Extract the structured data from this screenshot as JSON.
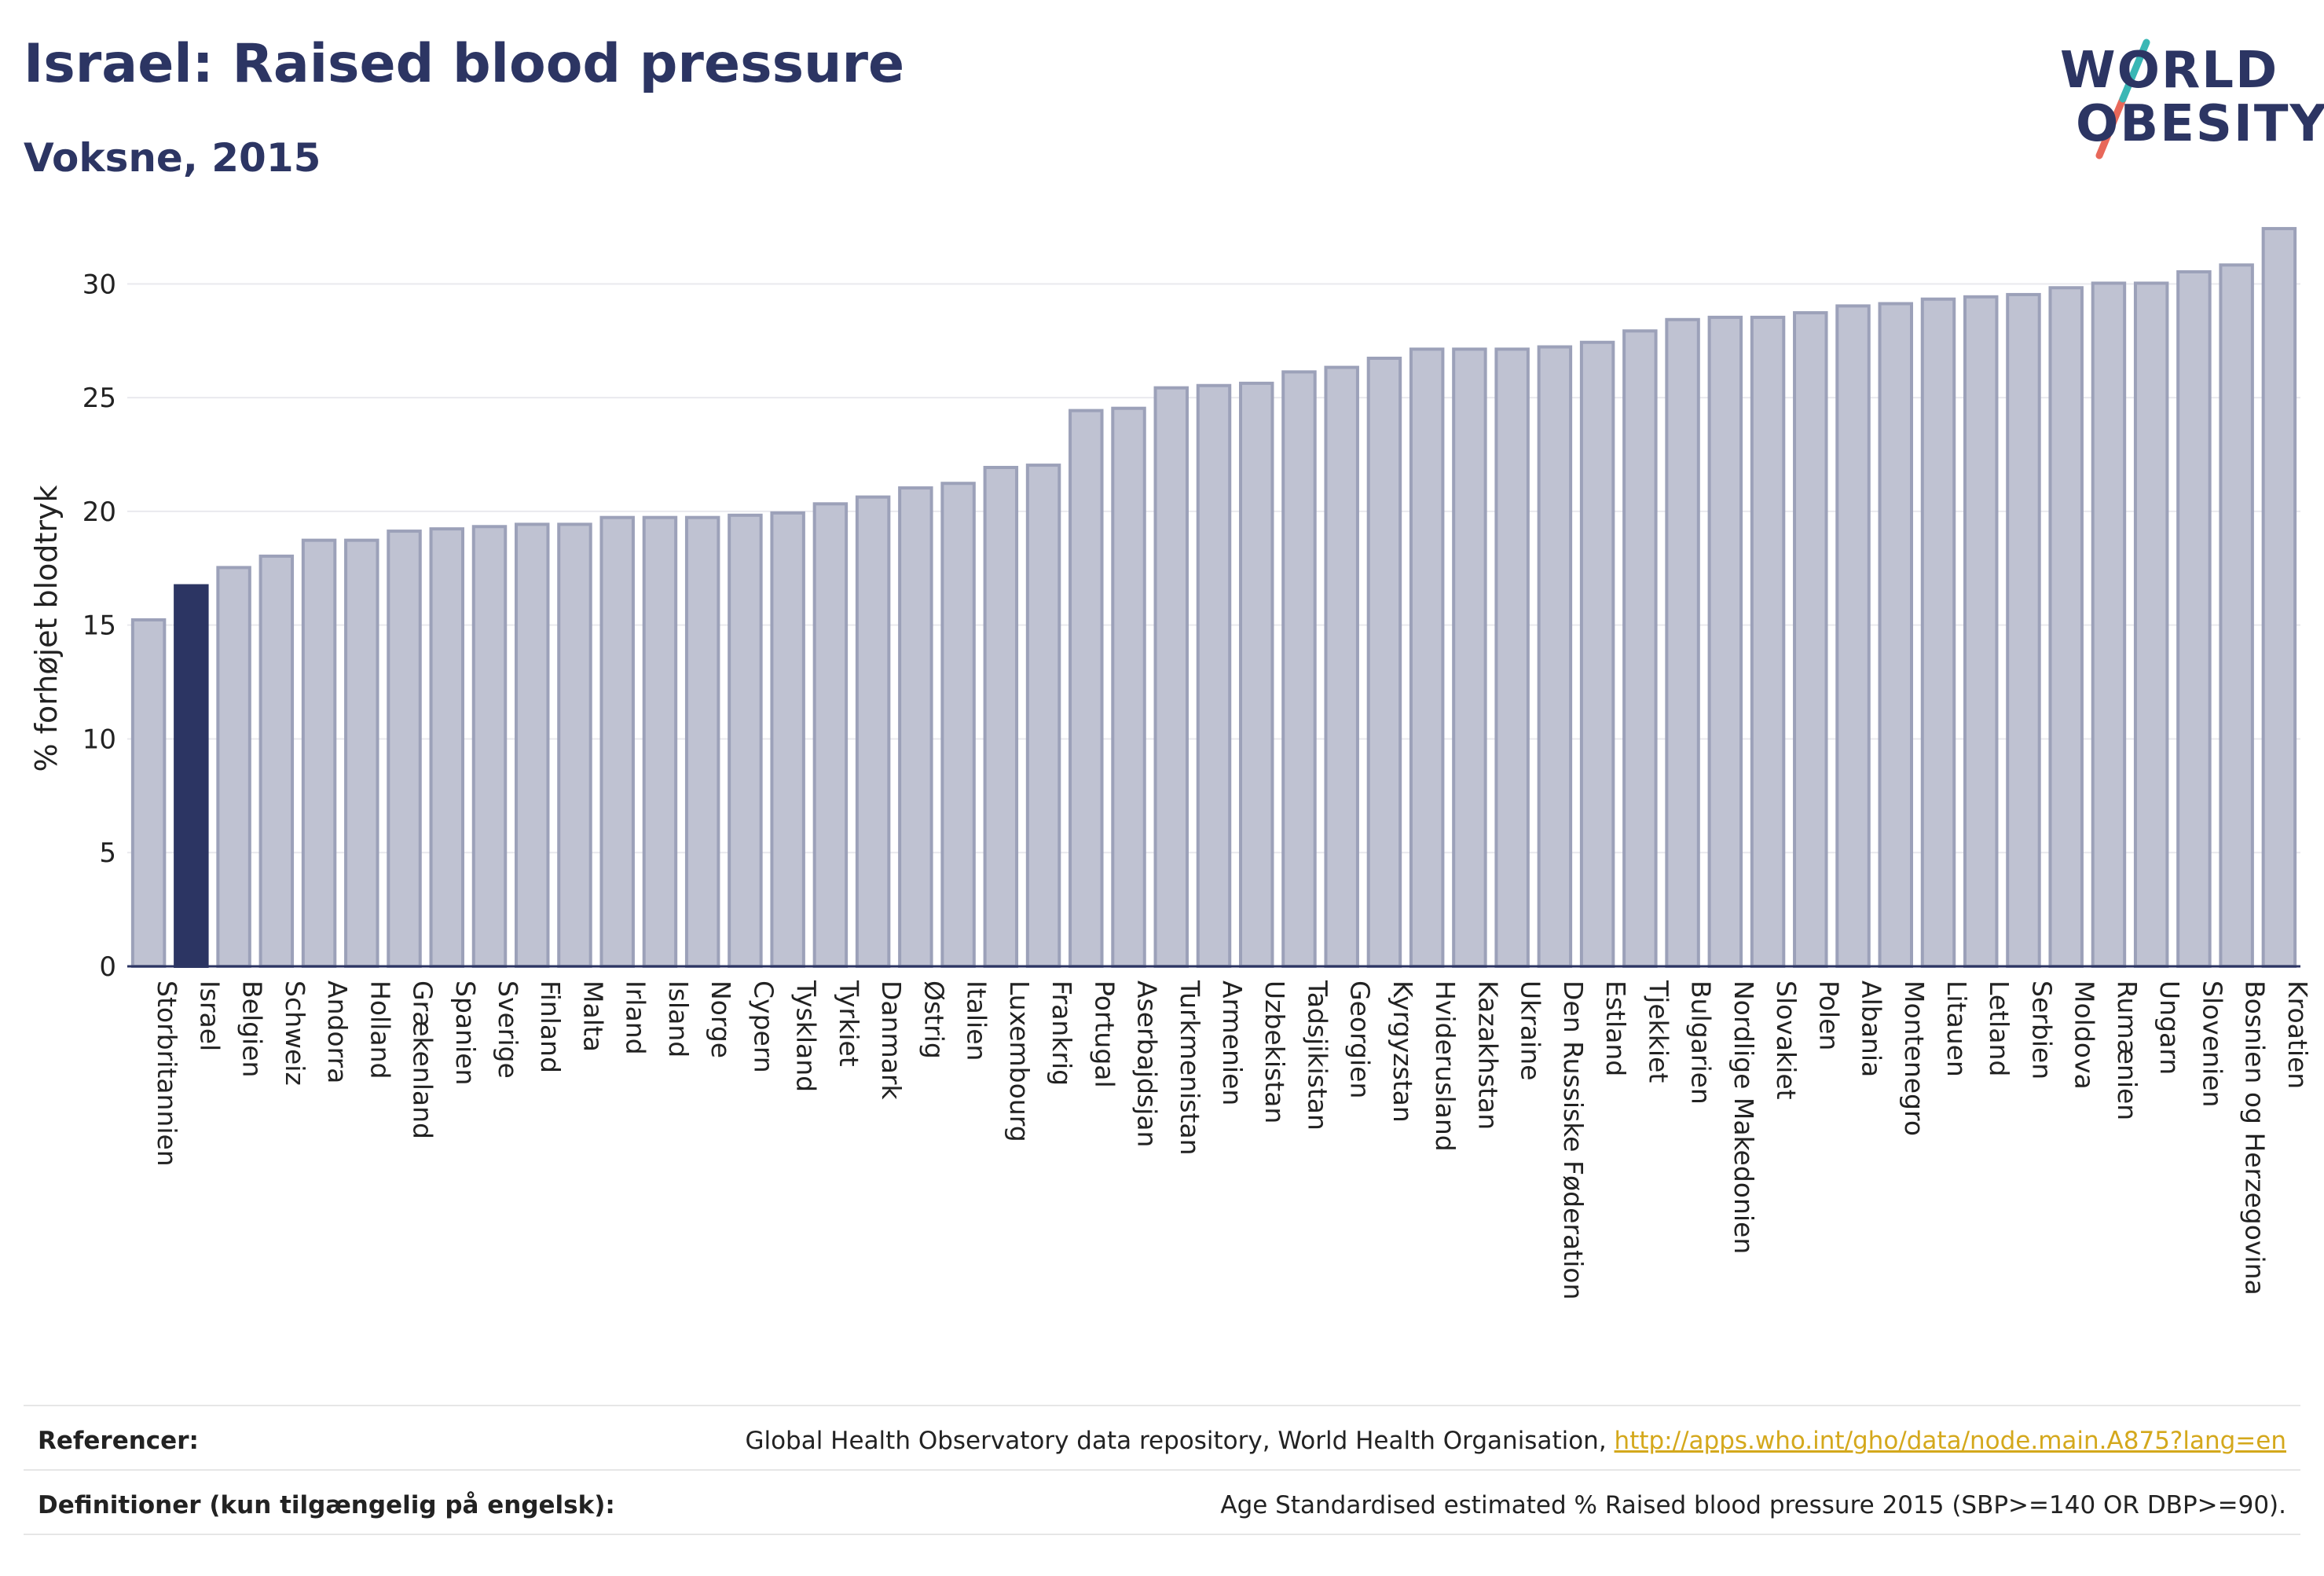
{
  "header": {
    "title": "Israel: Raised blood pressure",
    "subtitle": "Voksne, 2015"
  },
  "logo": {
    "line1": "WORLD",
    "line2": "OBESITY",
    "colors": {
      "text": "#2c3563",
      "slash_top": "#3ab7b5",
      "slash_bottom": "#e8685a"
    }
  },
  "colors": {
    "bar_default": "#bfc2d2",
    "bar_border": "#9ca1b9",
    "bar_highlight": "#2c3563",
    "axis_text": "#222222",
    "grid": "#e9e9ee"
  },
  "chart_data": {
    "type": "bar",
    "ylabel": "% forhøjet blodtryk",
    "ylim": [
      0,
      33.5
    ],
    "yticks": [
      0,
      5,
      10,
      15,
      20,
      25,
      30
    ],
    "grid": true,
    "highlight": "Israel",
    "categories": [
      "Storbritannien",
      "Israel",
      "Belgien",
      "Schweiz",
      "Andorra",
      "Holland",
      "Grækenland",
      "Spanien",
      "Sverige",
      "Finland",
      "Malta",
      "Irland",
      "Island",
      "Norge",
      "Cypern",
      "Tyskland",
      "Tyrkiet",
      "Danmark",
      "Østrig",
      "Italien",
      "Luxembourg",
      "Frankrig",
      "Portugal",
      "Aserbajdsjan",
      "Turkmenistan",
      "Armenien",
      "Uzbekistan",
      "Tadsjikistan",
      "Georgien",
      "Kyrgyzstan",
      "Hviderusland",
      "Kazakhstan",
      "Ukraine",
      "Den Russiske Føderation",
      "Estland",
      "Tjekkiet",
      "Bulgarien",
      "Nordlige Makedonien",
      "Slovakiet",
      "Polen",
      "Albania",
      "Montenegro",
      "Litauen",
      "Letland",
      "Serbien",
      "Moldova",
      "Rumænien",
      "Ungarn",
      "Slovenien",
      "Bosnien og Herzegovina",
      "Kroatien"
    ],
    "values": [
      15.3,
      16.8,
      17.6,
      18.1,
      18.8,
      18.8,
      19.2,
      19.3,
      19.4,
      19.5,
      19.5,
      19.8,
      19.8,
      19.8,
      19.9,
      20.0,
      20.4,
      20.7,
      21.1,
      21.3,
      22.0,
      22.1,
      24.5,
      24.6,
      25.5,
      25.6,
      25.7,
      26.2,
      26.4,
      26.8,
      27.2,
      27.2,
      27.2,
      27.3,
      27.5,
      28.0,
      28.5,
      28.6,
      28.6,
      28.8,
      29.1,
      29.2,
      29.4,
      29.5,
      29.6,
      29.9,
      30.1,
      30.1,
      30.6,
      30.9,
      32.5
    ]
  },
  "footer": {
    "references_label": "Referencer:",
    "references_text": "Global Health Observatory data repository, World Health Organisation,",
    "references_link": "http://apps.who.int/gho/data/node.main.A875?lang=en",
    "definitions_label": "Definitioner (kun tilgængelig på engelsk):",
    "definitions_text": "Age Standardised estimated % Raised blood pressure 2015 (SBP>=140 OR DBP>=90)."
  }
}
